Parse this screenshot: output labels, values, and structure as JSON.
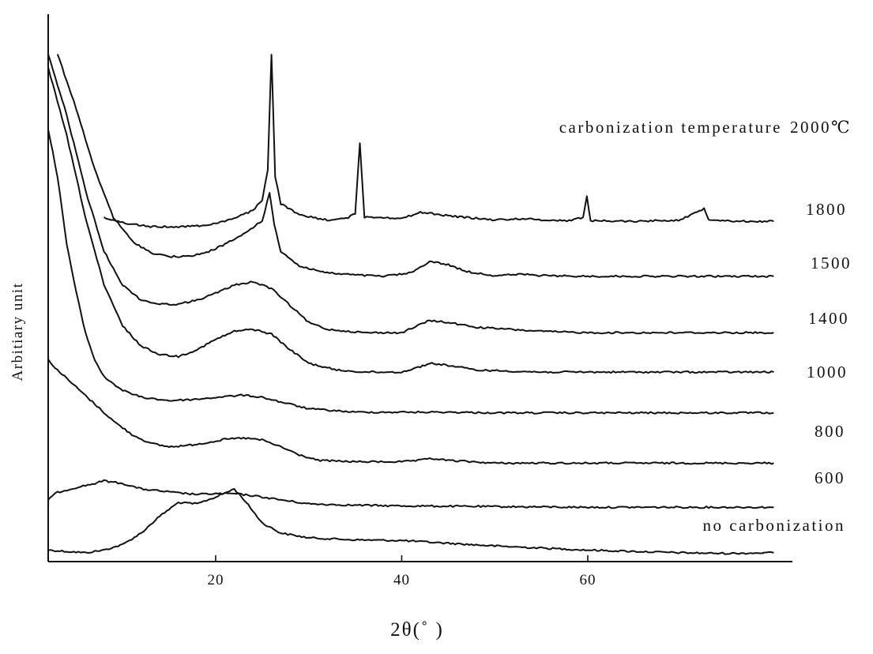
{
  "chart_data": {
    "type": "line",
    "xlabel": "2θ(˚ )",
    "ylabel": "Arbitiary unit",
    "xlim": [
      2,
      82
    ],
    "x_ticks": [
      20,
      40,
      60
    ],
    "series": [
      {
        "name": "no carbonization",
        "label": "no carbonization",
        "points": [
          [
            2,
            0.1
          ],
          [
            4,
            0.08
          ],
          [
            6,
            0.06
          ],
          [
            8,
            0.1
          ],
          [
            10,
            0.18
          ],
          [
            12,
            0.35
          ],
          [
            14,
            0.6
          ],
          [
            16,
            0.8
          ],
          [
            18,
            0.78
          ],
          [
            20,
            0.88
          ],
          [
            22,
            1.0
          ],
          [
            23,
            0.85
          ],
          [
            25,
            0.5
          ],
          [
            27,
            0.35
          ],
          [
            30,
            0.28
          ],
          [
            35,
            0.25
          ],
          [
            40,
            0.24
          ],
          [
            45,
            0.2
          ],
          [
            50,
            0.16
          ],
          [
            55,
            0.13
          ],
          [
            60,
            0.1
          ],
          [
            65,
            0.08
          ],
          [
            70,
            0.06
          ],
          [
            75,
            0.05
          ],
          [
            80,
            0.06
          ]
        ]
      },
      {
        "name": "600",
        "label": "600",
        "points": [
          [
            2,
            0.85
          ],
          [
            3,
            0.95
          ],
          [
            5,
            1.02
          ],
          [
            7,
            1.08
          ],
          [
            8,
            1.12
          ],
          [
            10,
            1.08
          ],
          [
            12,
            1.0
          ],
          [
            14,
            0.97
          ],
          [
            16,
            0.94
          ],
          [
            18,
            0.92
          ],
          [
            20,
            0.93
          ],
          [
            22,
            0.93
          ],
          [
            24,
            0.9
          ],
          [
            26,
            0.86
          ],
          [
            28,
            0.82
          ],
          [
            30,
            0.78
          ],
          [
            35,
            0.76
          ],
          [
            40,
            0.75
          ],
          [
            50,
            0.74
          ],
          [
            60,
            0.73
          ],
          [
            70,
            0.73
          ],
          [
            80,
            0.73
          ]
        ]
      },
      {
        "name": "800",
        "label": "800",
        "points": [
          [
            2,
            2.9
          ],
          [
            3,
            2.75
          ],
          [
            5,
            2.5
          ],
          [
            7,
            2.25
          ],
          [
            9,
            2.0
          ],
          [
            11,
            1.8
          ],
          [
            13,
            1.67
          ],
          [
            15,
            1.62
          ],
          [
            17,
            1.64
          ],
          [
            19,
            1.68
          ],
          [
            21,
            1.73
          ],
          [
            23,
            1.75
          ],
          [
            25,
            1.72
          ],
          [
            27,
            1.62
          ],
          [
            29,
            1.5
          ],
          [
            31,
            1.42
          ],
          [
            35,
            1.4
          ],
          [
            40,
            1.4
          ],
          [
            42,
            1.42
          ],
          [
            43,
            1.45
          ],
          [
            45,
            1.42
          ],
          [
            50,
            1.38
          ],
          [
            60,
            1.38
          ],
          [
            70,
            1.38
          ],
          [
            80,
            1.38
          ]
        ]
      },
      {
        "name": "1000",
        "label": "1000",
        "points": [
          [
            2,
            6.3
          ],
          [
            3,
            5.6
          ],
          [
            4,
            4.6
          ],
          [
            5,
            3.9
          ],
          [
            6,
            3.3
          ],
          [
            7,
            2.9
          ],
          [
            8,
            2.65
          ],
          [
            10,
            2.45
          ],
          [
            12,
            2.35
          ],
          [
            15,
            2.3
          ],
          [
            18,
            2.32
          ],
          [
            21,
            2.36
          ],
          [
            23,
            2.38
          ],
          [
            25,
            2.35
          ],
          [
            27,
            2.28
          ],
          [
            30,
            2.18
          ],
          [
            35,
            2.13
          ],
          [
            40,
            2.13
          ],
          [
            45,
            2.13
          ],
          [
            50,
            2.12
          ],
          [
            60,
            2.12
          ],
          [
            70,
            2.12
          ],
          [
            80,
            2.12
          ]
        ]
      },
      {
        "name": "1400",
        "label": "1400",
        "points": [
          [
            2,
            7.2
          ],
          [
            4,
            6.2
          ],
          [
            6,
            5.0
          ],
          [
            8,
            4.0
          ],
          [
            10,
            3.4
          ],
          [
            12,
            3.1
          ],
          [
            14,
            2.98
          ],
          [
            16,
            2.95
          ],
          [
            18,
            3.05
          ],
          [
            20,
            3.2
          ],
          [
            22,
            3.32
          ],
          [
            24,
            3.35
          ],
          [
            26,
            3.28
          ],
          [
            28,
            3.05
          ],
          [
            30,
            2.85
          ],
          [
            33,
            2.75
          ],
          [
            36,
            2.72
          ],
          [
            40,
            2.72
          ],
          [
            42,
            2.8
          ],
          [
            43,
            2.85
          ],
          [
            45,
            2.82
          ],
          [
            48,
            2.75
          ],
          [
            55,
            2.72
          ],
          [
            60,
            2.72
          ],
          [
            70,
            2.72
          ],
          [
            80,
            2.72
          ]
        ]
      },
      {
        "name": "1500",
        "label": "1500",
        "points": [
          [
            2,
            7.4
          ],
          [
            4,
            6.5
          ],
          [
            6,
            5.4
          ],
          [
            8,
            4.5
          ],
          [
            10,
            4.0
          ],
          [
            12,
            3.78
          ],
          [
            14,
            3.72
          ],
          [
            16,
            3.72
          ],
          [
            18,
            3.78
          ],
          [
            20,
            3.88
          ],
          [
            22,
            4.0
          ],
          [
            24,
            4.05
          ],
          [
            26,
            3.95
          ],
          [
            28,
            3.7
          ],
          [
            30,
            3.45
          ],
          [
            32,
            3.35
          ],
          [
            36,
            3.3
          ],
          [
            40,
            3.3
          ],
          [
            42,
            3.42
          ],
          [
            43,
            3.48
          ],
          [
            45,
            3.45
          ],
          [
            48,
            3.38
          ],
          [
            55,
            3.32
          ],
          [
            60,
            3.3
          ],
          [
            70,
            3.3
          ],
          [
            80,
            3.3
          ]
        ]
      },
      {
        "name": "1800",
        "label": "1800",
        "points": [
          [
            3,
            7.4
          ],
          [
            5,
            6.6
          ],
          [
            7,
            5.7
          ],
          [
            9,
            5.0
          ],
          [
            11,
            4.65
          ],
          [
            13,
            4.48
          ],
          [
            15,
            4.42
          ],
          [
            17,
            4.42
          ],
          [
            19,
            4.48
          ],
          [
            21,
            4.6
          ],
          [
            23,
            4.75
          ],
          [
            25,
            4.95
          ],
          [
            25.8,
            5.35
          ],
          [
            26.3,
            4.9
          ],
          [
            27,
            4.5
          ],
          [
            29,
            4.28
          ],
          [
            32,
            4.18
          ],
          [
            35,
            4.15
          ],
          [
            38,
            4.13
          ],
          [
            41,
            4.18
          ],
          [
            43,
            4.35
          ],
          [
            45,
            4.3
          ],
          [
            47,
            4.2
          ],
          [
            50,
            4.14
          ],
          [
            53,
            4.16
          ],
          [
            55,
            4.14
          ],
          [
            60,
            4.13
          ],
          [
            70,
            4.13
          ],
          [
            80,
            4.13
          ]
        ]
      },
      {
        "name": "2000℃",
        "label": "2000℃",
        "points": [
          [
            8,
            5.0
          ],
          [
            10,
            4.92
          ],
          [
            13,
            4.86
          ],
          [
            16,
            4.86
          ],
          [
            19,
            4.88
          ],
          [
            22,
            4.98
          ],
          [
            24,
            5.1
          ],
          [
            25,
            5.25
          ],
          [
            25.6,
            5.7
          ],
          [
            26.0,
            7.4
          ],
          [
            26.4,
            5.6
          ],
          [
            27,
            5.2
          ],
          [
            29,
            5.03
          ],
          [
            32,
            4.96
          ],
          [
            34,
            4.98
          ],
          [
            35,
            5.05
          ],
          [
            35.5,
            6.1
          ],
          [
            36,
            5.0
          ],
          [
            38,
            5.0
          ],
          [
            40,
            4.98
          ],
          [
            42,
            5.07
          ],
          [
            43,
            5.06
          ],
          [
            45,
            5.02
          ],
          [
            50,
            4.96
          ],
          [
            53,
            4.98
          ],
          [
            55,
            4.96
          ],
          [
            58,
            4.95
          ],
          [
            59.5,
            5.0
          ],
          [
            59.9,
            5.3
          ],
          [
            60.3,
            4.95
          ],
          [
            65,
            4.94
          ],
          [
            70,
            4.96
          ],
          [
            72.5,
            5.13
          ],
          [
            73,
            4.97
          ],
          [
            76,
            4.94
          ],
          [
            80,
            4.94
          ]
        ]
      }
    ]
  }
}
